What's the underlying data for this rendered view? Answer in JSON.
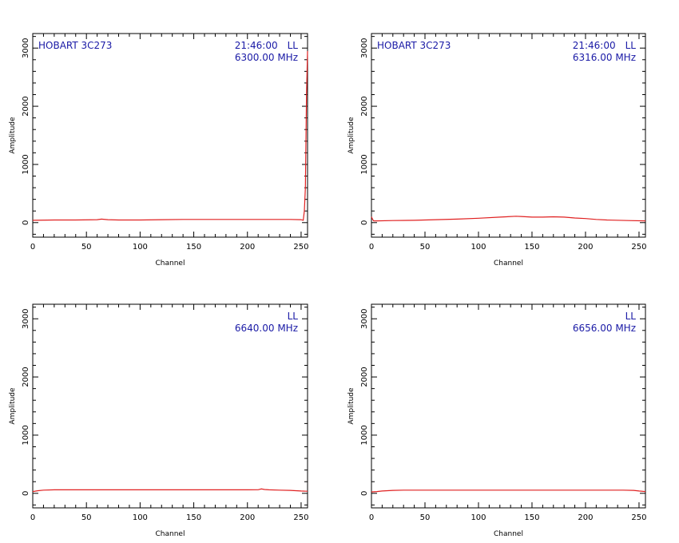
{
  "colors": {
    "series": "#e02020",
    "annotation": "#1a1aa6",
    "axes": "#000000"
  },
  "chart_data": [
    {
      "type": "line",
      "xlabel": "Channel",
      "ylabel": "Amplitude",
      "xlim": [
        0,
        256
      ],
      "ylim": [
        -250,
        3250
      ],
      "xticks": [
        0,
        50,
        100,
        150,
        200,
        250
      ],
      "yticks": [
        0,
        1000,
        2000,
        3000
      ],
      "grid": false,
      "source": "HOBART 3C273",
      "time": "21:46:00",
      "polarization": "LL",
      "frequency": "6300.00 MHz",
      "series": [
        {
          "x": [
            0,
            20,
            40,
            60,
            64,
            70,
            80,
            100,
            120,
            140,
            160,
            180,
            200,
            220,
            240,
            250,
            252,
            253,
            254,
            255,
            256
          ],
          "y": [
            40,
            45,
            45,
            50,
            60,
            50,
            45,
            45,
            50,
            55,
            55,
            55,
            55,
            55,
            55,
            50,
            40,
            200,
            600,
            2200,
            2950
          ]
        }
      ]
    },
    {
      "type": "line",
      "xlabel": "Channel",
      "ylabel": "Amplitude",
      "xlim": [
        0,
        256
      ],
      "ylim": [
        -250,
        3250
      ],
      "xticks": [
        0,
        50,
        100,
        150,
        200,
        250
      ],
      "yticks": [
        0,
        1000,
        2000,
        3000
      ],
      "grid": false,
      "source": "HOBART 3C273",
      "time": "21:46:00",
      "polarization": "LL",
      "frequency": "6316.00 MHz",
      "series": [
        {
          "x": [
            0,
            1,
            2,
            5,
            20,
            40,
            60,
            80,
            100,
            120,
            135,
            140,
            150,
            160,
            170,
            180,
            190,
            200,
            210,
            220,
            240,
            256
          ],
          "y": [
            100,
            60,
            30,
            30,
            35,
            40,
            50,
            60,
            75,
            95,
            110,
            105,
            95,
            95,
            100,
            95,
            80,
            70,
            55,
            45,
            35,
            30
          ]
        }
      ]
    },
    {
      "type": "line",
      "xlabel": "Channel",
      "ylabel": "Amplitude",
      "xlim": [
        0,
        256
      ],
      "ylim": [
        -250,
        3250
      ],
      "xticks": [
        0,
        50,
        100,
        150,
        200,
        250
      ],
      "yticks": [
        0,
        1000,
        2000,
        3000
      ],
      "grid": false,
      "source": "",
      "time": "",
      "polarization": "LL",
      "frequency": "6640.00 MHz",
      "series": [
        {
          "x": [
            0,
            5,
            10,
            20,
            40,
            60,
            80,
            100,
            120,
            140,
            160,
            180,
            200,
            210,
            213,
            216,
            220,
            230,
            240,
            250,
            256
          ],
          "y": [
            30,
            45,
            55,
            60,
            60,
            60,
            60,
            60,
            60,
            60,
            60,
            60,
            60,
            62,
            75,
            65,
            60,
            55,
            50,
            40,
            35
          ]
        }
      ]
    },
    {
      "type": "line",
      "xlabel": "Channel",
      "ylabel": "Amplitude",
      "xlim": [
        0,
        256
      ],
      "ylim": [
        -250,
        3250
      ],
      "xticks": [
        0,
        50,
        100,
        150,
        200,
        250
      ],
      "yticks": [
        0,
        1000,
        2000,
        3000
      ],
      "grid": false,
      "source": "",
      "time": "",
      "polarization": "LL",
      "frequency": "6656.00 MHz",
      "series": [
        {
          "x": [
            0,
            5,
            10,
            20,
            30,
            50,
            80,
            100,
            130,
            160,
            190,
            220,
            235,
            245,
            250,
            256
          ],
          "y": [
            25,
            30,
            40,
            50,
            55,
            55,
            55,
            55,
            55,
            55,
            55,
            55,
            55,
            50,
            40,
            30
          ]
        }
      ]
    }
  ]
}
